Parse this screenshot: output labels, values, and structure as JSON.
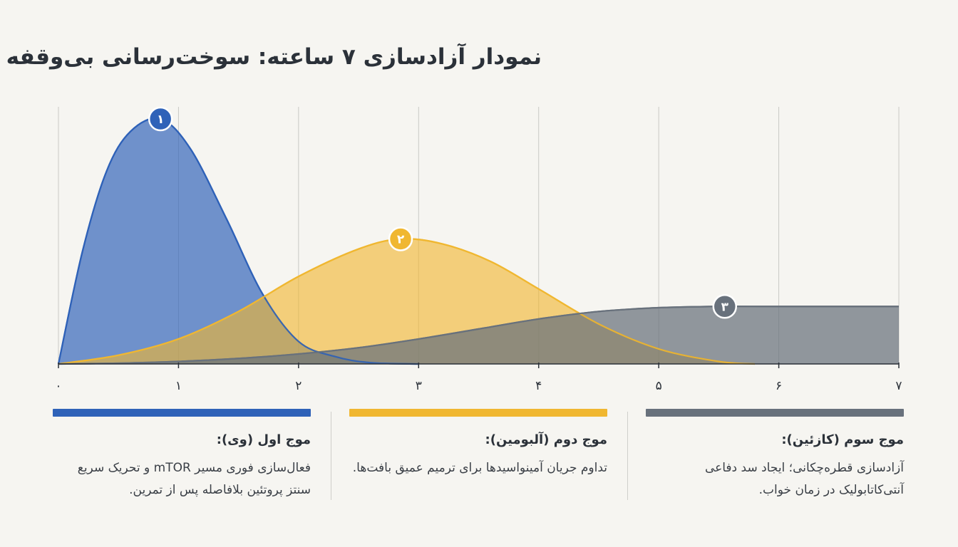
{
  "title": "نمودار آزادسازی ۷ ساعته: سوخت‌رسانی بی‌وقفه",
  "colors": {
    "wave1": "#2f62b8",
    "wave2": "#f0b731",
    "wave3": "#68717c",
    "grid": "#c9c9c5",
    "axis": "#2b3139"
  },
  "chart_data": {
    "type": "area",
    "xlabel": "",
    "ylabel": "",
    "xlim": [
      0,
      7
    ],
    "ylim": [
      0,
      1
    ],
    "x_ticks": [
      0,
      1,
      2,
      3,
      4,
      5,
      6,
      7
    ],
    "x_tick_labels": [
      "۰",
      "۱",
      "۲",
      "۳",
      "۴",
      "۵",
      "۶",
      "۷"
    ],
    "grid": true,
    "series": [
      {
        "marker": "۱",
        "color": "#2f62b8",
        "peak_x": 0.85,
        "peak_y": 0.98,
        "x": [
          0,
          0.2,
          0.4,
          0.6,
          0.85,
          1.1,
          1.4,
          1.7,
          2.0,
          2.3,
          2.6,
          3.0
        ],
        "y": [
          0,
          0.45,
          0.77,
          0.93,
          0.98,
          0.86,
          0.58,
          0.28,
          0.09,
          0.03,
          0.005,
          0
        ]
      },
      {
        "marker": "۲",
        "color": "#f0b731",
        "peak_x": 2.85,
        "peak_y": 0.5,
        "x": [
          0,
          0.5,
          1.0,
          1.5,
          2.0,
          2.5,
          2.85,
          3.2,
          3.6,
          4.0,
          4.5,
          5.0,
          5.5,
          5.8
        ],
        "y": [
          0,
          0.035,
          0.1,
          0.21,
          0.35,
          0.46,
          0.5,
          0.48,
          0.41,
          0.3,
          0.16,
          0.06,
          0.01,
          0
        ]
      },
      {
        "marker": "۳",
        "color": "#68717c",
        "peak_x": 5.55,
        "peak_y": 0.23,
        "x": [
          0,
          0.5,
          1.0,
          1.5,
          2.0,
          2.5,
          3.0,
          3.5,
          4.0,
          4.5,
          5.0,
          5.5,
          6.0,
          7.0
        ],
        "y": [
          0,
          0.003,
          0.01,
          0.022,
          0.04,
          0.065,
          0.1,
          0.14,
          0.18,
          0.21,
          0.225,
          0.23,
          0.23,
          0.23
        ]
      }
    ]
  },
  "legend": {
    "wave1": {
      "title": "موج اول (وی):",
      "text": "فعال‌سازی فوری مسیر mTOR و تحریک سریع سنتز پروتئین بلافاصله پس از تمرین."
    },
    "wave2": {
      "title": "موج دوم (آلبومین):",
      "text": "تداوم جریان آمینواسیدها برای ترمیم عمیق بافت‌ها."
    },
    "wave3": {
      "title": "موج سوم (کازئین):",
      "text": "آزادسازی قطره‌چکانی؛ ایجاد سد دفاعی آنتی‌کاتابولیک در زمان خواب."
    }
  }
}
